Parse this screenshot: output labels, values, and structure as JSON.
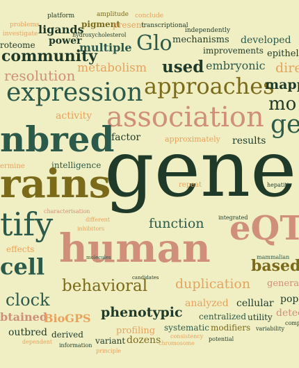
{
  "palette": {
    "background": "#f0efc4",
    "dark_green": "#1f3a28",
    "olive": "#7a6a1a",
    "salmon": "#cf8f7a",
    "orange": "#e7a25c",
    "teal": "#2c5a4a",
    "brown": "#6b4a18"
  },
  "words": [
    {
      "text": "platform",
      "color": "#1f3a28"
    },
    {
      "text": "amplitude",
      "color": "#7a6a1a"
    },
    {
      "text": "conclude",
      "color": "#e7a25c"
    },
    {
      "text": "problems",
      "color": "#e7a25c"
    },
    {
      "text": "ligands",
      "color": "#1f3a28"
    },
    {
      "text": "pigment",
      "color": "#7a6a1a"
    },
    {
      "text": "present",
      "color": "#e7a25c"
    },
    {
      "text": "transcriptional",
      "color": "#1f3a28"
    },
    {
      "text": "independently",
      "color": "#1f3a28"
    },
    {
      "text": "investigate",
      "color": "#e7a25c"
    },
    {
      "text": "hydroxycholesterol",
      "color": "#1f3a28"
    },
    {
      "text": "Glo",
      "color": "#2c5a4a"
    },
    {
      "text": "mechanisms",
      "color": "#1f3a28"
    },
    {
      "text": "developed",
      "color": "#2c5a4a"
    },
    {
      "text": "roteome",
      "color": "#1f3a28"
    },
    {
      "text": "power",
      "color": "#1f3a28"
    },
    {
      "text": "multiple",
      "color": "#2c5a4a"
    },
    {
      "text": "improvements",
      "color": "#1f3a28"
    },
    {
      "text": "epitheli",
      "color": "#1f3a28"
    },
    {
      "text": "community",
      "color": "#1f3a28"
    },
    {
      "text": "metabolism",
      "color": "#e7a25c"
    },
    {
      "text": "used",
      "color": "#1f3a28"
    },
    {
      "text": "embryonic",
      "color": "#2c5a4a"
    },
    {
      "text": "direc",
      "color": "#e7a25c"
    },
    {
      "text": "resolution",
      "color": "#cf8f7a"
    },
    {
      "text": "expression",
      "color": "#2c5a4a"
    },
    {
      "text": "approaches",
      "color": "#7a6a1a"
    },
    {
      "text": "mapp",
      "color": "#1f3a28"
    },
    {
      "text": "mo",
      "color": "#1f3a28"
    },
    {
      "text": "association",
      "color": "#cf8f7a"
    },
    {
      "text": "activity",
      "color": "#e7a25c"
    },
    {
      "text": "ge",
      "color": "#2c5a4a"
    },
    {
      "text": "nbred",
      "color": "#2c5a4a"
    },
    {
      "text": "factor",
      "color": "#1f3a28"
    },
    {
      "text": "approximately",
      "color": "#e7a25c"
    },
    {
      "text": "results",
      "color": "#1f3a28"
    },
    {
      "text": "ermine",
      "color": "#e7a25c"
    },
    {
      "text": "intelligence",
      "color": "#2c5a4a"
    },
    {
      "text": "gene",
      "color": "#1f3a28"
    },
    {
      "text": "rains",
      "color": "#7a6a1a"
    },
    {
      "text": "repeat",
      "color": "#e7a25c"
    },
    {
      "text": "hepatitis",
      "color": "#1f3a28"
    },
    {
      "text": "characterisation",
      "color": "#cf8f7a"
    },
    {
      "text": "different",
      "color": "#e7a25c"
    },
    {
      "text": "integrated",
      "color": "#1f3a28"
    },
    {
      "text": "tify",
      "color": "#2c5a4a"
    },
    {
      "text": "inhibitors",
      "color": "#e7a25c"
    },
    {
      "text": "function",
      "color": "#2c5a4a"
    },
    {
      "text": "eQTL",
      "color": "#cf8f7a"
    },
    {
      "text": "human",
      "color": "#cf8f7a"
    },
    {
      "text": "effects",
      "color": "#e7a25c"
    },
    {
      "text": "molecules",
      "color": "#2c5a4a"
    },
    {
      "text": "mammalian",
      "color": "#2c5a4a"
    },
    {
      "text": "cell",
      "color": "#2c5a4a"
    },
    {
      "text": "based",
      "color": "#7a6a1a"
    },
    {
      "text": "candidates",
      "color": "#1f3a28"
    },
    {
      "text": "behavioral",
      "color": "#7a6a1a"
    },
    {
      "text": "duplication",
      "color": "#e7a25c"
    },
    {
      "text": "genera",
      "color": "#cf8f7a"
    },
    {
      "text": "clock",
      "color": "#2c5a4a"
    },
    {
      "text": "popu",
      "color": "#1f3a28"
    },
    {
      "text": "analyzed",
      "color": "#e7a25c"
    },
    {
      "text": "cellular",
      "color": "#1f3a28"
    },
    {
      "text": "detec",
      "color": "#cf8f7a"
    },
    {
      "text": "phenotypic",
      "color": "#1f3a28"
    },
    {
      "text": "btained",
      "color": "#cf8f7a"
    },
    {
      "text": "BioGPS",
      "color": "#e7a25c"
    },
    {
      "text": "centralized",
      "color": "#2c5a4a"
    },
    {
      "text": "utility",
      "color": "#1f3a28"
    },
    {
      "text": "comp",
      "color": "#1f3a28"
    },
    {
      "text": "profiling",
      "color": "#e7a25c"
    },
    {
      "text": "systematic",
      "color": "#2c5a4a"
    },
    {
      "text": "modifiers",
      "color": "#7a6a1a"
    },
    {
      "text": "variability",
      "color": "#1f3a28"
    },
    {
      "text": "outbred",
      "color": "#1f3a28"
    },
    {
      "text": "derived",
      "color": "#1f3a28"
    },
    {
      "text": "variant",
      "color": "#1f3a28"
    },
    {
      "text": "dozens",
      "color": "#7a6a1a"
    },
    {
      "text": "consistency",
      "color": "#e7a25c"
    },
    {
      "text": "dependent",
      "color": "#e7a25c"
    },
    {
      "text": "information",
      "color": "#1f3a28"
    },
    {
      "text": "principle",
      "color": "#e7a25c"
    },
    {
      "text": "chromosome",
      "color": "#e7a25c"
    },
    {
      "text": "potential",
      "color": "#1f3a28"
    }
  ]
}
